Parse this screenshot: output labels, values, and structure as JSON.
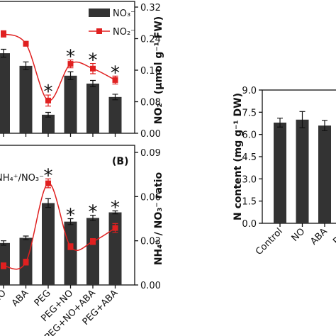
{
  "chart_data": [
    {
      "type": "bar",
      "categories": [
        "NO",
        "ABA",
        "PEG",
        "PEG+NO",
        "PEG+NO+ABA",
        "PEG+ABA"
      ],
      "series": [
        {
          "name": "NO₃⁻",
          "color": "#333333",
          "values": [
            0.203,
            0.171,
            0.047,
            0.146,
            0.126,
            0.092
          ],
          "errors": [
            0.01,
            0.01,
            0.006,
            0.01,
            0.008,
            0.007
          ]
        },
        {
          "name": "NO₂⁻",
          "type": "line",
          "color": "#e02020",
          "values": [
            0.252,
            0.227,
            0.083,
            0.176,
            0.164,
            0.135
          ],
          "errors": [
            0.008,
            0.006,
            0.014,
            0.01,
            0.013,
            0.01
          ]
        }
      ],
      "ylim": [
        0,
        0.32
      ],
      "yticks": [
        {
          "value": 0,
          "label": "0.00"
        },
        {
          "value": 0.08,
          "label": "0.08"
        },
        {
          "value": 0.16,
          "label": "0.16"
        },
        {
          "value": 0.24,
          "label": "0.24"
        },
        {
          "value": 0.32,
          "label": "0.32"
        }
      ],
      "ylabel": "NO₂⁻ (μmol g⁻¹ FW)",
      "annotations": [
        {
          "text": "*",
          "x": "PEG"
        },
        {
          "text": "*",
          "x": "PEG+NO"
        },
        {
          "text": "*",
          "x": "PEG+NO+ABA"
        },
        {
          "text": "*",
          "x": "PEG+ABA"
        }
      ]
    },
    {
      "type": "bar",
      "panel": "(B)",
      "categories": [
        "NO",
        "ABA",
        "PEG",
        "PEG+NO",
        "PEG+NO+ABA",
        "PEG+ABA"
      ],
      "series": [
        {
          "color": "#333333",
          "values": [
            0.0285,
            0.032,
            0.0556,
            0.043,
            0.0455,
            0.0493
          ],
          "errors": [
            0.0015,
            0.0012,
            0.003,
            0.002,
            0.0018,
            0.001
          ]
        },
        {
          "name": "NH₄⁺/NO₃⁻",
          "type": "line",
          "color": "#e02020",
          "values": [
            0.013,
            0.0155,
            0.069,
            0.026,
            0.0295,
            0.0387
          ],
          "errors": [
            0.002,
            0.002,
            0.003,
            0.002,
            0.002,
            0.003
          ]
        }
      ],
      "ylim": [
        0,
        0.09
      ],
      "yticks": [
        {
          "value": 0,
          "label": "0.00"
        },
        {
          "value": 0.03,
          "label": "0.03"
        },
        {
          "value": 0.06,
          "label": "0.06"
        },
        {
          "value": 0.09,
          "label": "0.09"
        }
      ],
      "ylabel": "NH₄⁺ / NO₃⁻ ratio",
      "annotations": [
        {
          "text": "*",
          "x": "PEG"
        },
        {
          "text": "*",
          "x": "PEG+NO"
        },
        {
          "text": "*",
          "x": "PEG+NO+ABA"
        },
        {
          "text": "*",
          "x": "PEG+ABA"
        }
      ]
    },
    {
      "type": "bar",
      "categories": [
        "Control",
        "NO",
        "ABA",
        "PEG"
      ],
      "series": [
        {
          "color": "#333333",
          "values": [
            6.8,
            7.0,
            6.6,
            null
          ],
          "errors": [
            0.3,
            0.55,
            0.35,
            null
          ]
        }
      ],
      "ylim": [
        0,
        9
      ],
      "yticks": [
        {
          "value": 0,
          "label": "0.0"
        },
        {
          "value": 1.5,
          "label": "1.5"
        },
        {
          "value": 3,
          "label": "3.0"
        },
        {
          "value": 4.5,
          "label": "4.5"
        },
        {
          "value": 6,
          "label": "6.0"
        },
        {
          "value": 7.5,
          "label": "7.5"
        },
        {
          "value": 9,
          "label": "9.0"
        }
      ],
      "ylabel": "N content (mg g⁻¹ DW)"
    }
  ]
}
